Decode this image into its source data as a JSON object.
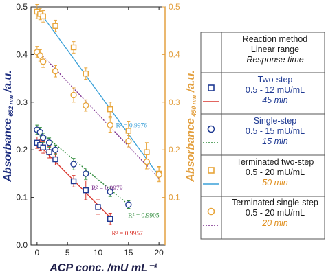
{
  "chart_data": {
    "type": "scatter",
    "xlabel": "ACP conc. /mU mL⁻¹",
    "ylabel_left": "Absorbance 652 nm /a.u.",
    "ylabel_left_main": "Absorbance",
    "ylabel_left_sub": "652 nm",
    "ylabel_left_unit": " /a.u.",
    "ylabel_right": "Absorbance 450 nm /a.u.",
    "ylabel_right_main": "Absorbance",
    "ylabel_right_sub": "450 nm",
    "ylabel_right_unit": " /a.u.",
    "xlim": [
      -1,
      21
    ],
    "ylim_left": [
      0,
      0.5
    ],
    "ylim_right": [
      0,
      0.5
    ],
    "x_ticks": [
      "0",
      "5",
      "10",
      "15",
      "20"
    ],
    "y_left_ticks": [
      "0.0",
      "0.1",
      "0.2",
      "0.3",
      "0.4",
      "0.5"
    ],
    "y_right_ticks": [
      "0.1",
      "0.2",
      "0.3",
      "0.4",
      "0.5"
    ],
    "colors": {
      "blue": "#1f3a93",
      "green": "#2e8b3a",
      "orange": "#e8a53a",
      "red": "#d9342b",
      "cyan": "#3aa0d8",
      "purple": "#7a2c8c",
      "right_axis": "#e3a040"
    },
    "series": [
      {
        "name": "Two-step",
        "axis": "left",
        "marker": "square",
        "color": "#1f3a93",
        "line_color": "#d9342b",
        "line_style": "solid",
        "x": [
          0,
          0.5,
          1,
          2,
          3,
          6,
          8,
          10,
          12
        ],
        "y": [
          0.215,
          0.21,
          0.205,
          0.195,
          0.18,
          0.134,
          0.115,
          0.08,
          0.055
        ],
        "err": [
          0.012,
          0.012,
          0.012,
          0.012,
          0.012,
          0.012,
          0.02,
          0.015,
          0.012
        ],
        "fit": {
          "x": [
            0,
            12
          ],
          "y": [
            0.214,
            0.058
          ]
        },
        "r2": "R² = 0.9957",
        "r2_color": "#d9342b",
        "r2_at": [
          14.8,
          0.02
        ]
      },
      {
        "name": "Single-step",
        "axis": "left",
        "marker": "circle",
        "color": "#1f3a93",
        "line_color": "#2e8b3a",
        "line_style": "dotted",
        "x": [
          0,
          0.5,
          1,
          2,
          3,
          6,
          8,
          12,
          15
        ],
        "y": [
          0.242,
          0.237,
          0.225,
          0.215,
          0.2,
          0.17,
          0.15,
          0.112,
          0.085
        ],
        "err": [
          0.01,
          0.01,
          0.01,
          0.01,
          0.01,
          0.012,
          0.012,
          0.01,
          0.008
        ],
        "fit": {
          "x": [
            0,
            15
          ],
          "y": [
            0.243,
            0.085
          ]
        },
        "r2": "R² = 0.9905",
        "r2_color": "#2e8b3a",
        "r2_at": [
          17.5,
          0.058
        ]
      },
      {
        "name": "Terminated two-step",
        "axis": "right",
        "marker": "square",
        "color": "#e8a53a",
        "line_color": "#3aa0d8",
        "line_style": "solid",
        "x": [
          0,
          0.5,
          1,
          3,
          6,
          8,
          12,
          15,
          18,
          20
        ],
        "y": [
          0.49,
          0.485,
          0.48,
          0.46,
          0.415,
          0.36,
          0.285,
          0.24,
          0.195,
          0.15
        ],
        "err": [
          0.015,
          0.012,
          0.012,
          0.012,
          0.012,
          0.012,
          0.015,
          0.02,
          0.02,
          0.015
        ],
        "fit": {
          "x": [
            0,
            20
          ],
          "y": [
            0.497,
            0.145
          ]
        },
        "r2": "R² = 0.9976",
        "r2_color": "#3aa0d8",
        "r2_at": [
          15.5,
          0.247
        ]
      },
      {
        "name": "Terminated single-step",
        "axis": "right",
        "marker": "circle",
        "color": "#e8a53a",
        "line_color": "#7a2c8c",
        "line_style": "dotted",
        "x": [
          0,
          0.5,
          1,
          3,
          6,
          8,
          12,
          15,
          18,
          20
        ],
        "y": [
          0.405,
          0.398,
          0.385,
          0.365,
          0.315,
          0.293,
          0.252,
          0.218,
          0.175,
          0.148
        ],
        "err": [
          0.012,
          0.012,
          0.012,
          0.012,
          0.015,
          0.012,
          0.015,
          0.012,
          0.015,
          0.015
        ],
        "fit": {
          "x": [
            0,
            20
          ],
          "y": [
            0.41,
            0.14
          ]
        },
        "r2": "R² = 0.9979",
        "r2_color": "#7a2c8c",
        "r2_at": [
          11.5,
          0.115
        ]
      }
    ]
  },
  "legend": {
    "header": {
      "line1": "Reaction method",
      "line2": "Linear range",
      "line3": "Response time"
    },
    "entries": [
      {
        "method": "Two-step",
        "range": "0.5 - 12 mU/mL",
        "time": "45 min",
        "marker": "square",
        "marker_color": "#1f3a93",
        "line_color": "#d9342b",
        "line_style": "solid",
        "text_color": "#1f3a93",
        "time_color": "#1f3a93"
      },
      {
        "method": "Single-step",
        "range": "0.5 - 15 mU/mL",
        "time": "15 min",
        "marker": "circle",
        "marker_color": "#1f3a93",
        "line_color": "#2e8b3a",
        "line_style": "dotted",
        "text_color": "#1f3a93",
        "time_color": "#1f3a93"
      },
      {
        "method": "Terminated two-step",
        "range": "0.5 - 20 mU/mL",
        "time": "50 min",
        "marker": "square",
        "marker_color": "#e8a53a",
        "line_color": "#3aa0d8",
        "line_style": "solid",
        "text_color": "#1a1a1a",
        "time_color": "#e09020"
      },
      {
        "method": "Terminated single-step",
        "range": "0.5 - 20 mU/mL",
        "time": "20 min",
        "marker": "circle",
        "marker_color": "#e8a53a",
        "line_color": "#7a2c8c",
        "line_style": "dotted",
        "text_color": "#1a1a1a",
        "time_color": "#e09020"
      }
    ]
  }
}
